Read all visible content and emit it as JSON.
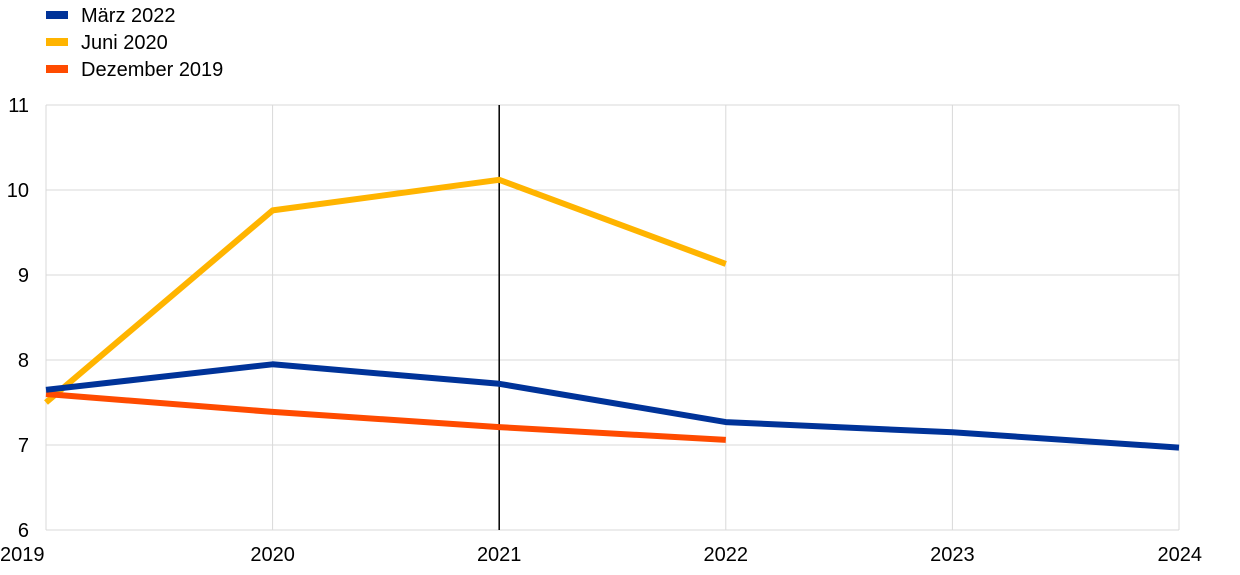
{
  "chart_data": {
    "type": "line",
    "x": [
      2019,
      2020,
      2021,
      2022,
      2023,
      2024
    ],
    "xlim": [
      2019,
      2024
    ],
    "ylim": [
      6,
      11
    ],
    "yticks": [
      6,
      7,
      8,
      9,
      10,
      11
    ],
    "grid": true,
    "legend_position": "top-left",
    "vertical_marker": 2021,
    "series": [
      {
        "name": "März 2022",
        "color": "#003399",
        "x": [
          2019,
          2020,
          2021,
          2022,
          2023,
          2024
        ],
        "values": [
          7.65,
          7.95,
          7.72,
          7.27,
          7.15,
          6.97
        ]
      },
      {
        "name": "Juni 2020",
        "color": "#FFB400",
        "x": [
          2019,
          2020,
          2021,
          2022
        ],
        "values": [
          7.5,
          9.76,
          10.12,
          9.13
        ]
      },
      {
        "name": "Dezember 2019",
        "color": "#FF4B00",
        "x": [
          2019,
          2020,
          2021,
          2022
        ],
        "values": [
          7.6,
          7.39,
          7.21,
          7.06
        ]
      }
    ]
  }
}
